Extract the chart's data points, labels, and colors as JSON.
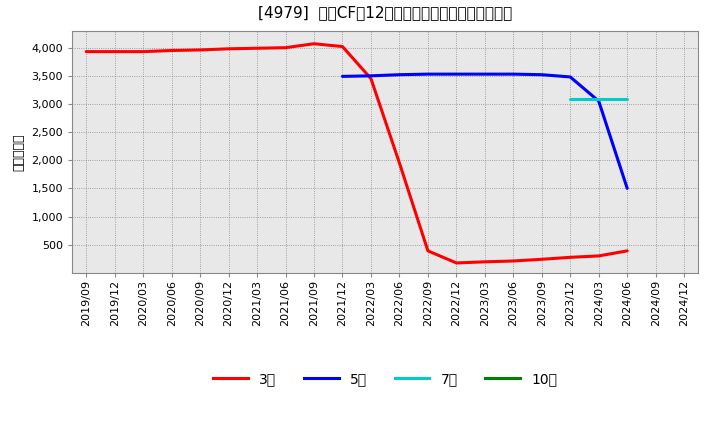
{
  "title": "[4979]  投賄CFの12か月移動合計の標準偏差の推移",
  "ylabel": "（百万円）",
  "background_color": "#ffffff",
  "plot_bg_color": "#e8e8e8",
  "grid_color": "#aaaaaa",
  "ylim": [
    0,
    4300
  ],
  "yticks": [
    500,
    1000,
    1500,
    2000,
    2500,
    3000,
    3500,
    4000
  ],
  "series": {
    "3年": {
      "color": "#ff0000",
      "data": [
        [
          "2019/09",
          3930
        ],
        [
          "2019/12",
          3930
        ],
        [
          "2020/03",
          3930
        ],
        [
          "2020/06",
          3950
        ],
        [
          "2020/09",
          3960
        ],
        [
          "2020/12",
          3980
        ],
        [
          "2021/03",
          3990
        ],
        [
          "2021/06",
          4000
        ],
        [
          "2021/09",
          4070
        ],
        [
          "2021/12",
          4020
        ],
        [
          "2022/03",
          3450
        ],
        [
          "2022/06",
          1950
        ],
        [
          "2022/09",
          390
        ],
        [
          "2022/12",
          175
        ],
        [
          "2023/03",
          195
        ],
        [
          "2023/06",
          210
        ],
        [
          "2023/09",
          240
        ],
        [
          "2023/12",
          275
        ],
        [
          "2024/03",
          300
        ],
        [
          "2024/06",
          390
        ]
      ]
    },
    "5年": {
      "color": "#0000ff",
      "data": [
        [
          "2021/12",
          3490
        ],
        [
          "2022/03",
          3500
        ],
        [
          "2022/06",
          3520
        ],
        [
          "2022/09",
          3530
        ],
        [
          "2022/12",
          3530
        ],
        [
          "2023/03",
          3530
        ],
        [
          "2023/06",
          3530
        ],
        [
          "2023/09",
          3520
        ],
        [
          "2023/12",
          3480
        ],
        [
          "2024/03",
          3050
        ],
        [
          "2024/06",
          1500
        ]
      ]
    },
    "7年": {
      "color": "#00cccc",
      "data": [
        [
          "2023/12",
          3080
        ],
        [
          "2024/03",
          3080
        ],
        [
          "2024/06",
          3080
        ]
      ]
    },
    "10年": {
      "color": "#008000",
      "data": []
    }
  },
  "xtick_labels": [
    "2019/09",
    "2019/12",
    "2020/03",
    "2020/06",
    "2020/09",
    "2020/12",
    "2021/03",
    "2021/06",
    "2021/09",
    "2021/12",
    "2022/03",
    "2022/06",
    "2022/09",
    "2022/12",
    "2023/03",
    "2023/06",
    "2023/09",
    "2023/12",
    "2024/03",
    "2024/06",
    "2024/09",
    "2024/12"
  ],
  "legend_labels": [
    "3年",
    "5年",
    "7年",
    "10年"
  ],
  "legend_colors": [
    "#ff0000",
    "#0000ff",
    "#00cccc",
    "#008000"
  ]
}
